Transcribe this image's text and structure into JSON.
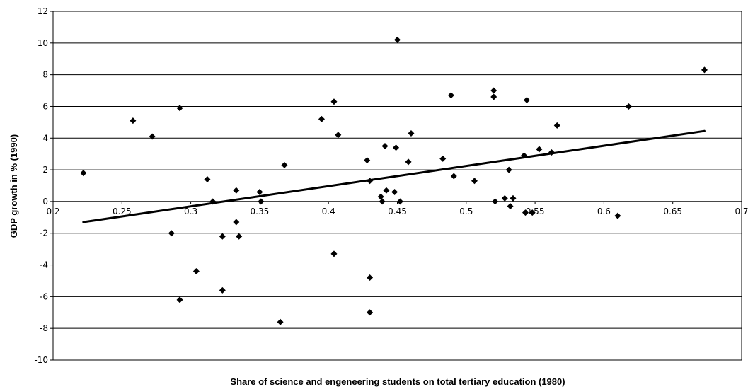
{
  "chart_data": {
    "type": "scatter",
    "title": "",
    "xlabel": "Share of science and engeneering students on total tertiary education (1980)",
    "ylabel": "GDP growth in % (1990)",
    "xlim": [
      0.2,
      0.7
    ],
    "ylim": [
      -10,
      12
    ],
    "xticks": [
      0.2,
      0.25,
      0.3,
      0.35,
      0.4,
      0.45,
      0.5,
      0.55,
      0.6,
      0.65,
      0.7
    ],
    "xtick_labels": [
      "0.2",
      "0.25",
      "0.3",
      "0.35",
      "0.4",
      "0.45",
      "0.5",
      "0.55",
      "0.6",
      "0.65",
      "0.7"
    ],
    "yticks": [
      -10,
      -8,
      -6,
      -4,
      -2,
      0,
      2,
      4,
      6,
      8,
      10,
      12
    ],
    "ytick_labels": [
      "-10",
      "-8",
      "-6",
      "-4",
      "-2",
      "0",
      "2",
      "4",
      "6",
      "8",
      "10",
      "12"
    ],
    "grid": "horizontal",
    "marker": "diamond",
    "points": [
      {
        "x": 0.222,
        "y": 1.8
      },
      {
        "x": 0.258,
        "y": 5.1
      },
      {
        "x": 0.272,
        "y": 4.1
      },
      {
        "x": 0.286,
        "y": -2.0
      },
      {
        "x": 0.292,
        "y": 5.9
      },
      {
        "x": 0.292,
        "y": -6.2
      },
      {
        "x": 0.304,
        "y": -4.4
      },
      {
        "x": 0.312,
        "y": 1.4
      },
      {
        "x": 0.316,
        "y": 0.0
      },
      {
        "x": 0.323,
        "y": -2.2
      },
      {
        "x": 0.323,
        "y": -5.6
      },
      {
        "x": 0.333,
        "y": 0.7
      },
      {
        "x": 0.333,
        "y": -1.3
      },
      {
        "x": 0.335,
        "y": -2.2
      },
      {
        "x": 0.35,
        "y": 0.6
      },
      {
        "x": 0.351,
        "y": 0.0
      },
      {
        "x": 0.365,
        "y": -7.6
      },
      {
        "x": 0.368,
        "y": 2.3
      },
      {
        "x": 0.395,
        "y": 5.2
      },
      {
        "x": 0.404,
        "y": 6.3
      },
      {
        "x": 0.404,
        "y": -3.3
      },
      {
        "x": 0.407,
        "y": 4.2
      },
      {
        "x": 0.428,
        "y": 2.6
      },
      {
        "x": 0.43,
        "y": 1.3
      },
      {
        "x": 0.43,
        "y": -4.8
      },
      {
        "x": 0.43,
        "y": -7.0
      },
      {
        "x": 0.438,
        "y": 0.3
      },
      {
        "x": 0.439,
        "y": 0.0
      },
      {
        "x": 0.441,
        "y": 3.5
      },
      {
        "x": 0.442,
        "y": 0.7
      },
      {
        "x": 0.448,
        "y": 0.6
      },
      {
        "x": 0.449,
        "y": 3.4
      },
      {
        "x": 0.45,
        "y": 10.2
      },
      {
        "x": 0.452,
        "y": 0.0
      },
      {
        "x": 0.458,
        "y": 2.5
      },
      {
        "x": 0.46,
        "y": 4.3
      },
      {
        "x": 0.483,
        "y": 2.7
      },
      {
        "x": 0.489,
        "y": 6.7
      },
      {
        "x": 0.491,
        "y": 1.6
      },
      {
        "x": 0.506,
        "y": 1.3
      },
      {
        "x": 0.52,
        "y": 7.0
      },
      {
        "x": 0.52,
        "y": 6.6
      },
      {
        "x": 0.521,
        "y": 0.0
      },
      {
        "x": 0.528,
        "y": 0.2
      },
      {
        "x": 0.531,
        "y": 2.0
      },
      {
        "x": 0.532,
        "y": -0.3
      },
      {
        "x": 0.534,
        "y": 0.2
      },
      {
        "x": 0.542,
        "y": 2.9
      },
      {
        "x": 0.543,
        "y": -0.7
      },
      {
        "x": 0.544,
        "y": 6.4
      },
      {
        "x": 0.548,
        "y": -0.7
      },
      {
        "x": 0.553,
        "y": 3.3
      },
      {
        "x": 0.562,
        "y": 3.1
      },
      {
        "x": 0.566,
        "y": 4.8
      },
      {
        "x": 0.61,
        "y": -0.9
      },
      {
        "x": 0.618,
        "y": 6.0
      },
      {
        "x": 0.673,
        "y": 8.3
      }
    ],
    "trendline": {
      "x": [
        0.222,
        0.673
      ],
      "y": [
        -1.3,
        4.45
      ]
    }
  }
}
